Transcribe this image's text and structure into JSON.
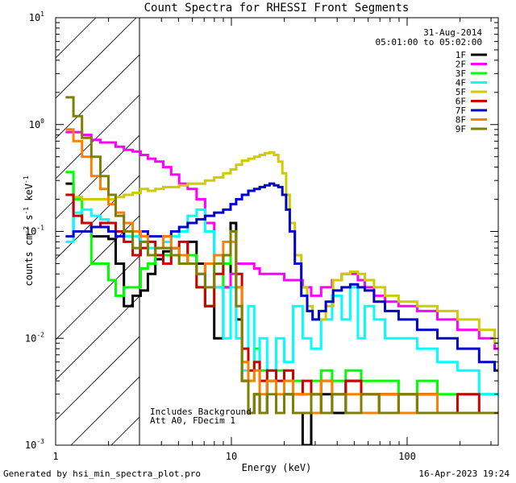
{
  "chart_data": {
    "type": "line",
    "title": "Count Spectra for RHESSI Front Segments",
    "date": "31-Aug-2014",
    "time_range": "05:01:00 to 05:02:00",
    "xlabel": "Energy (keV)",
    "ylabel_parts": [
      "counts cm",
      "-2",
      " s",
      "-1",
      " keV",
      "-1"
    ],
    "xscale": "log",
    "yscale": "log",
    "xlim": [
      1,
      330
    ],
    "ylim": [
      0.001,
      10
    ],
    "x_ticks": [
      {
        "value": 1,
        "label": "1"
      },
      {
        "value": 10,
        "label": "10"
      },
      {
        "value": 100,
        "label": "100"
      }
    ],
    "y_ticks": [
      {
        "value": 0.001,
        "base": "10",
        "exp": "-3"
      },
      {
        "value": 0.01,
        "base": "10",
        "exp": "-2"
      },
      {
        "value": 0.1,
        "base": "10",
        "exp": "-1"
      },
      {
        "value": 1,
        "base": "10",
        "exp": "0"
      },
      {
        "value": 10,
        "base": "10",
        "exp": "1"
      }
    ],
    "hatched_region": {
      "x_from": 1,
      "x_to": 3
    },
    "annotations": [
      "Includes Background",
      "Att A0, FDecim 1"
    ],
    "legend_position": "top-right",
    "series": [
      {
        "name": "1F",
        "color": "#000000",
        "x": [
          1.2,
          1.33,
          1.5,
          1.7,
          1.9,
          2.1,
          2.3,
          2.6,
          2.9,
          3.2,
          3.5,
          3.9,
          4.3,
          4.8,
          5.3,
          6,
          6.7,
          7.5,
          8.5,
          9.5,
          10.3,
          11,
          12,
          13,
          14,
          15,
          17,
          19,
          21,
          24,
          27,
          30,
          35,
          40,
          50,
          60,
          80,
          100,
          130,
          170,
          220,
          300
        ],
        "y": [
          0.28,
          0.1,
          0.1,
          0.09,
          0.09,
          0.085,
          0.05,
          0.02,
          0.025,
          0.028,
          0.04,
          0.055,
          0.065,
          0.07,
          0.06,
          0.08,
          0.05,
          0.02,
          0.01,
          0.03,
          0.12,
          0.015,
          0.004,
          0.002,
          0.003,
          0.002,
          0.004,
          0.002,
          0.003,
          0.002,
          0.001,
          0.002,
          0.003,
          0.002,
          0.004,
          0.002,
          0.003,
          0.002,
          0.003,
          0.002,
          0.002,
          0.002
        ]
      },
      {
        "name": "2F",
        "color": "#ff00ff",
        "x": [
          1.2,
          1.33,
          1.5,
          1.7,
          1.9,
          2.1,
          2.3,
          2.6,
          2.9,
          3.2,
          3.5,
          3.9,
          4.3,
          4.8,
          5.3,
          6,
          6.7,
          7.5,
          8.5,
          9.5,
          10.3,
          11,
          12,
          13,
          14,
          15,
          17,
          19,
          21,
          24,
          27,
          30,
          35,
          40,
          45,
          50,
          55,
          60,
          70,
          80,
          100,
          130,
          170,
          220,
          300,
          330
        ],
        "y": [
          0.85,
          0.85,
          0.8,
          0.72,
          0.68,
          0.68,
          0.62,
          0.58,
          0.56,
          0.52,
          0.48,
          0.45,
          0.4,
          0.34,
          0.28,
          0.25,
          0.2,
          0.12,
          0.06,
          0.03,
          0.04,
          0.05,
          0.05,
          0.05,
          0.045,
          0.04,
          0.04,
          0.04,
          0.035,
          0.035,
          0.03,
          0.025,
          0.03,
          0.035,
          0.04,
          0.04,
          0.035,
          0.03,
          0.025,
          0.022,
          0.02,
          0.018,
          0.015,
          0.012,
          0.01,
          0.008
        ]
      },
      {
        "name": "3F",
        "color": "#00ff00",
        "x": [
          1.2,
          1.33,
          1.5,
          1.7,
          1.9,
          2.1,
          2.3,
          2.6,
          2.9,
          3.2,
          3.5,
          3.9,
          4.3,
          4.8,
          5.3,
          6,
          6.7,
          7.5,
          8.5,
          9.5,
          10.3,
          11,
          12,
          13,
          14,
          15,
          17,
          19,
          21,
          24,
          27,
          30,
          35,
          40,
          50,
          60,
          80,
          100,
          130,
          170,
          220,
          300
        ],
        "y": [
          0.36,
          0.2,
          0.12,
          0.05,
          0.05,
          0.035,
          0.025,
          0.03,
          0.03,
          0.045,
          0.05,
          0.06,
          0.06,
          0.07,
          0.05,
          0.06,
          0.03,
          0.02,
          0.03,
          0.05,
          0.1,
          0.03,
          0.006,
          0.004,
          0.008,
          0.005,
          0.004,
          0.005,
          0.004,
          0.004,
          0.003,
          0.004,
          0.005,
          0.004,
          0.005,
          0.004,
          0.004,
          0.003,
          0.004,
          0.003,
          0.003,
          0.003
        ]
      },
      {
        "name": "4F",
        "color": "#00ffff",
        "x": [
          1.2,
          1.33,
          1.5,
          1.7,
          1.9,
          2.1,
          2.3,
          2.6,
          2.9,
          3.2,
          3.5,
          3.9,
          4.3,
          4.8,
          5.3,
          6,
          6.7,
          7.5,
          8.5,
          9.5,
          10.3,
          11,
          12,
          13,
          14,
          15,
          17,
          19,
          21,
          24,
          27,
          30,
          35,
          40,
          45,
          50,
          55,
          60,
          70,
          80,
          100,
          130,
          170,
          220,
          300
        ],
        "y": [
          0.08,
          0.15,
          0.16,
          0.14,
          0.13,
          0.12,
          0.1,
          0.09,
          0.09,
          0.08,
          0.07,
          0.07,
          0.08,
          0.09,
          0.1,
          0.14,
          0.16,
          0.1,
          0.03,
          0.01,
          0.03,
          0.01,
          0.005,
          0.02,
          0.006,
          0.01,
          0.005,
          0.01,
          0.006,
          0.02,
          0.01,
          0.008,
          0.015,
          0.025,
          0.015,
          0.03,
          0.01,
          0.02,
          0.015,
          0.01,
          0.01,
          0.008,
          0.006,
          0.005,
          0.003
        ]
      },
      {
        "name": "5F",
        "color": "#cccc00",
        "x": [
          1.2,
          1.33,
          1.5,
          1.7,
          1.9,
          2.1,
          2.3,
          2.6,
          2.9,
          3.2,
          3.5,
          3.9,
          4.3,
          4.8,
          5.3,
          6,
          6.7,
          7.5,
          8.5,
          9.5,
          10.3,
          11,
          12,
          13,
          14,
          15,
          16,
          17,
          18,
          19,
          20,
          21,
          22,
          24,
          26,
          28,
          30,
          33,
          36,
          40,
          45,
          50,
          55,
          60,
          70,
          80,
          100,
          130,
          170,
          220,
          300,
          330
        ],
        "y": [
          0.22,
          0.21,
          0.2,
          0.2,
          0.2,
          0.2,
          0.21,
          0.22,
          0.23,
          0.25,
          0.24,
          0.25,
          0.26,
          0.26,
          0.27,
          0.28,
          0.28,
          0.3,
          0.32,
          0.35,
          0.38,
          0.42,
          0.46,
          0.48,
          0.5,
          0.52,
          0.54,
          0.55,
          0.52,
          0.45,
          0.35,
          0.22,
          0.12,
          0.06,
          0.03,
          0.02,
          0.015,
          0.015,
          0.02,
          0.035,
          0.04,
          0.042,
          0.04,
          0.035,
          0.03,
          0.025,
          0.022,
          0.02,
          0.018,
          0.015,
          0.012,
          0.009
        ]
      },
      {
        "name": "6F",
        "color": "#cc0000",
        "x": [
          1.2,
          1.33,
          1.5,
          1.7,
          1.9,
          2.1,
          2.3,
          2.6,
          2.9,
          3.2,
          3.5,
          3.9,
          4.3,
          4.8,
          5.3,
          6,
          6.7,
          7.5,
          8.5,
          9.5,
          10.3,
          11,
          12,
          13,
          14,
          15,
          17,
          19,
          21,
          24,
          27,
          30,
          35,
          40,
          50,
          60,
          80,
          100,
          130,
          170,
          220,
          300
        ],
        "y": [
          0.22,
          0.14,
          0.12,
          0.11,
          0.12,
          0.12,
          0.1,
          0.08,
          0.06,
          0.07,
          0.08,
          0.06,
          0.05,
          0.07,
          0.08,
          0.05,
          0.03,
          0.02,
          0.04,
          0.06,
          0.1,
          0.04,
          0.008,
          0.005,
          0.006,
          0.004,
          0.005,
          0.004,
          0.005,
          0.003,
          0.004,
          0.003,
          0.004,
          0.003,
          0.004,
          0.003,
          0.003,
          0.003,
          0.003,
          0.002,
          0.003,
          0.002
        ]
      },
      {
        "name": "7F",
        "color": "#0000cc",
        "x": [
          1.2,
          1.33,
          1.5,
          1.7,
          1.9,
          2.1,
          2.3,
          2.6,
          2.9,
          3.2,
          3.5,
          3.9,
          4.3,
          4.8,
          5.3,
          6,
          6.7,
          7.5,
          8.5,
          9.5,
          10.3,
          11,
          12,
          13,
          14,
          15,
          16,
          17,
          18,
          19,
          20,
          21,
          22,
          24,
          26,
          28,
          30,
          33,
          36,
          40,
          45,
          50,
          55,
          60,
          70,
          80,
          100,
          130,
          170,
          220,
          300,
          330
        ],
        "y": [
          0.09,
          0.1,
          0.1,
          0.11,
          0.11,
          0.1,
          0.09,
          0.1,
          0.1,
          0.1,
          0.09,
          0.09,
          0.09,
          0.1,
          0.11,
          0.12,
          0.13,
          0.14,
          0.15,
          0.16,
          0.18,
          0.2,
          0.22,
          0.24,
          0.25,
          0.26,
          0.27,
          0.28,
          0.27,
          0.26,
          0.22,
          0.16,
          0.1,
          0.05,
          0.025,
          0.018,
          0.015,
          0.018,
          0.022,
          0.028,
          0.03,
          0.032,
          0.03,
          0.028,
          0.022,
          0.018,
          0.015,
          0.012,
          0.01,
          0.008,
          0.006,
          0.005
        ]
      },
      {
        "name": "8F",
        "color": "#ff8000",
        "x": [
          1.2,
          1.33,
          1.5,
          1.7,
          1.9,
          2.1,
          2.3,
          2.6,
          2.9,
          3.2,
          3.5,
          3.9,
          4.3,
          4.8,
          5.3,
          6,
          6.7,
          7.5,
          8.5,
          9.5,
          10.3,
          11,
          12,
          13,
          14,
          15,
          17,
          19,
          21,
          24,
          27,
          30,
          35,
          40,
          50,
          60,
          80,
          100,
          130,
          170,
          220,
          300
        ],
        "y": [
          0.9,
          0.7,
          0.5,
          0.33,
          0.25,
          0.18,
          0.15,
          0.12,
          0.1,
          0.09,
          0.06,
          0.07,
          0.09,
          0.07,
          0.06,
          0.05,
          0.04,
          0.05,
          0.06,
          0.08,
          0.08,
          0.03,
          0.006,
          0.004,
          0.005,
          0.003,
          0.004,
          0.003,
          0.004,
          0.003,
          0.003,
          0.002,
          0.004,
          0.003,
          0.003,
          0.002,
          0.003,
          0.002,
          0.003,
          0.002,
          0.002,
          0.002
        ]
      },
      {
        "name": "9F",
        "color": "#808000",
        "x": [
          1.2,
          1.33,
          1.5,
          1.7,
          1.9,
          2.1,
          2.3,
          2.6,
          2.9,
          3.2,
          3.5,
          3.9,
          4.3,
          4.8,
          5.3,
          6,
          6.7,
          7.5,
          8.5,
          9.5,
          10.3,
          11,
          12,
          13,
          14,
          15,
          17,
          19,
          21,
          24,
          27,
          30,
          35,
          40,
          50,
          60,
          80,
          100,
          130,
          170,
          220,
          300
        ],
        "y": [
          1.8,
          1.2,
          0.75,
          0.5,
          0.33,
          0.22,
          0.14,
          0.1,
          0.07,
          0.08,
          0.06,
          0.07,
          0.07,
          0.06,
          0.05,
          0.05,
          0.04,
          0.03,
          0.05,
          0.06,
          0.1,
          0.02,
          0.004,
          0.002,
          0.003,
          0.002,
          0.003,
          0.002,
          0.003,
          0.002,
          0.002,
          0.003,
          0.002,
          0.003,
          0.002,
          0.003,
          0.002,
          0.003,
          0.002,
          0.002,
          0.002,
          0.002
        ]
      }
    ]
  },
  "footer": {
    "generated_by": "Generated by hsi_min_spectra_plot.pro",
    "timestamp": "16-Apr-2023 19:24"
  }
}
